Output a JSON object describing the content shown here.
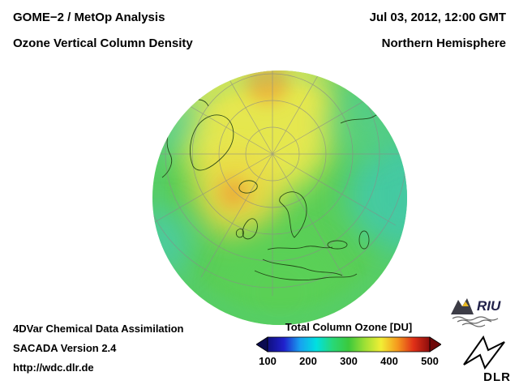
{
  "header": {
    "left_line1": "GOME−2 / MetOp Analysis",
    "left_line2": "Ozone Vertical Column Density",
    "right_line1": "Jul 03, 2012, 12:00 GMT",
    "right_line2": "Northern Hemisphere"
  },
  "footer": {
    "line1": "4DVar Chemical Data Assimilation",
    "line2": "SACADA Version 2.4",
    "line3": "http://wdc.dlr.de"
  },
  "colorbar": {
    "title": "Total Column Ozone [DU]",
    "ticks": [
      "100",
      "200",
      "300",
      "400",
      "500"
    ],
    "range_min": 100,
    "range_max": 500,
    "gradient_colors": [
      "#10107e",
      "#2020cc",
      "#18a0f0",
      "#00e0e0",
      "#28d878",
      "#3cc93c",
      "#9fe035",
      "#f2ee35",
      "#f59a1e",
      "#e03018",
      "#8c0c0c"
    ],
    "left_arrow_color": "#0a0a50",
    "right_arrow_color": "#6e0808"
  },
  "globe": {
    "base_color": "#5bcf58",
    "projection": "orthographic, Northern Hemisphere (polar view)"
  },
  "logos": {
    "riu": "RIU",
    "dlr": "DLR"
  },
  "chart_data": {
    "type": "heatmap",
    "title": "Total Column Ozone [DU]",
    "colorbar_ticks": [
      100,
      200,
      300,
      400,
      500
    ],
    "colorbar_range": [
      100,
      500
    ],
    "field_summary": "Mostly green (~250-300 DU) over the hemisphere; yellow-orange maxima (~320-360 DU) near the pole and North Atlantic/Iceland sector; cyan minima (~200-240 DU) along eastern and western limbs"
  }
}
